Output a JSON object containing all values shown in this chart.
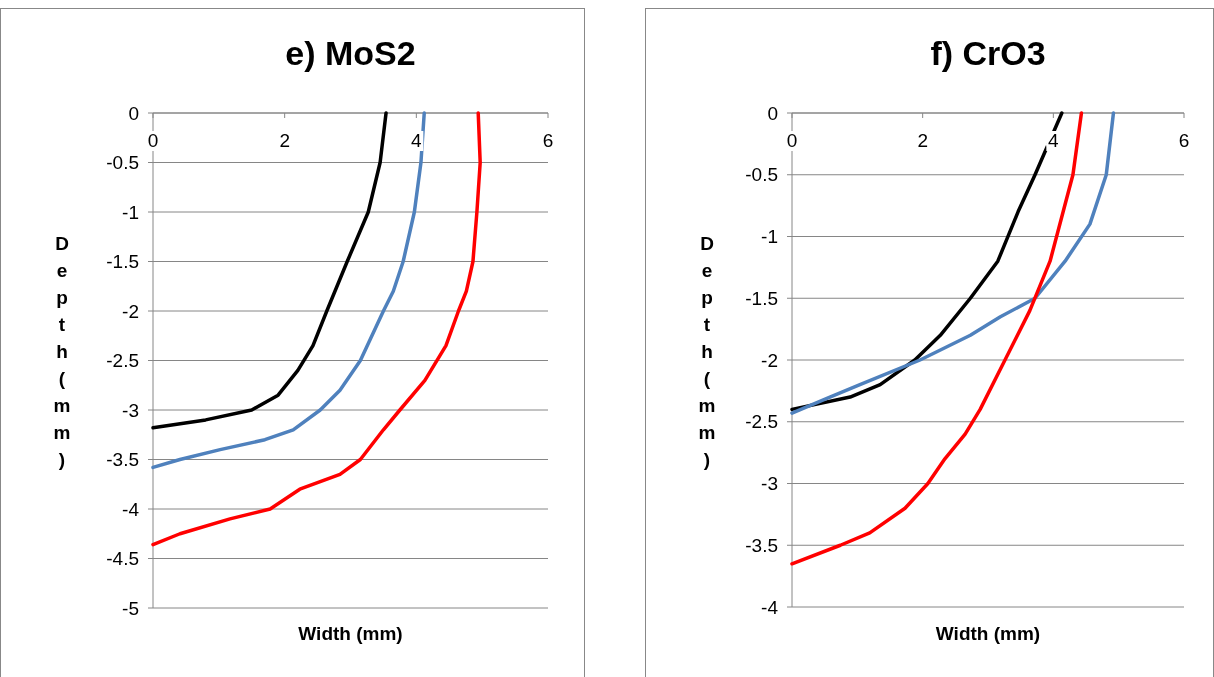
{
  "chart_data": [
    {
      "type": "line",
      "title": "e) MoS2",
      "xlabel": "Width (mm)",
      "ylabel": "Depth (mm)",
      "xlim": [
        0,
        6
      ],
      "xticks": [
        0,
        2,
        4,
        6
      ],
      "ylim": [
        -5,
        0
      ],
      "yticks": [
        -5,
        -4.5,
        -4,
        -3.5,
        -3,
        -2.5,
        -2,
        -1.5,
        -1,
        -0.5,
        0
      ],
      "grid": "y",
      "marker": "none",
      "line_style": "solid",
      "series": [
        {
          "color": "#000000",
          "x": [
            3.54,
            3.45,
            3.27,
            2.95,
            2.64,
            2.43,
            2.2,
            1.9,
            1.5,
            0.8,
            0
          ],
          "values": [
            0,
            -0.5,
            -1,
            -1.5,
            -2,
            -2.35,
            -2.6,
            -2.85,
            -3.0,
            -3.1,
            -3.18
          ]
        },
        {
          "color": "#4f81bd",
          "x": [
            4.12,
            4.07,
            3.97,
            3.8,
            3.65,
            3.5,
            3.15,
            2.84,
            2.54,
            2.13,
            1.7,
            1.02,
            0.41,
            0
          ],
          "values": [
            0,
            -0.5,
            -1,
            -1.5,
            -1.8,
            -2,
            -2.5,
            -2.8,
            -3,
            -3.2,
            -3.3,
            -3.4,
            -3.5,
            -3.58
          ]
        },
        {
          "color": "#ff0000",
          "x": [
            4.94,
            4.97,
            4.92,
            4.86,
            4.76,
            4.64,
            4.45,
            4.13,
            3.75,
            3.5,
            3.15,
            2.84,
            2.23,
            1.78,
            1.17,
            0.41,
            0
          ],
          "values": [
            0,
            -0.5,
            -1,
            -1.5,
            -1.8,
            -2,
            -2.35,
            -2.7,
            -3,
            -3.2,
            -3.5,
            -3.65,
            -3.8,
            -4.0,
            -4.1,
            -4.25,
            -4.36
          ]
        }
      ]
    },
    {
      "type": "line",
      "title": "f) CrO3",
      "xlabel": "Width (mm)",
      "ylabel": "Depth (mm)",
      "xlim": [
        0,
        6
      ],
      "xticks": [
        0,
        2,
        4,
        6
      ],
      "ylim": [
        -4,
        0
      ],
      "yticks": [
        -4,
        -3.5,
        -3,
        -2.5,
        -2,
        -1.5,
        -1,
        -0.5,
        0
      ],
      "grid": "y",
      "marker": "none",
      "line_style": "solid",
      "series": [
        {
          "color": "#000000",
          "x": [
            4.13,
            3.72,
            3.46,
            3.15,
            2.73,
            2.27,
            1.88,
            1.35,
            0.89,
            0
          ],
          "values": [
            0,
            -0.5,
            -0.8,
            -1.2,
            -1.5,
            -1.8,
            -2,
            -2.2,
            -2.3,
            -2.4
          ]
        },
        {
          "color": "#4f81bd",
          "x": [
            4.92,
            4.81,
            4.56,
            4.18,
            3.72,
            3.19,
            2.73,
            1.96,
            1.04,
            0.58,
            0
          ],
          "values": [
            0,
            -0.5,
            -0.9,
            -1.2,
            -1.5,
            -1.65,
            -1.8,
            -2,
            -2.2,
            -2.3,
            -2.43
          ]
        },
        {
          "color": "#ff0000",
          "x": [
            4.43,
            4.3,
            4.15,
            3.95,
            3.64,
            3.26,
            2.88,
            2.65,
            2.34,
            2.08,
            1.73,
            1.19,
            0.74,
            0
          ],
          "values": [
            0,
            -0.5,
            -0.8,
            -1.2,
            -1.6,
            -2,
            -2.4,
            -2.6,
            -2.8,
            -3,
            -3.2,
            -3.4,
            -3.5,
            -3.65
          ]
        }
      ]
    }
  ]
}
